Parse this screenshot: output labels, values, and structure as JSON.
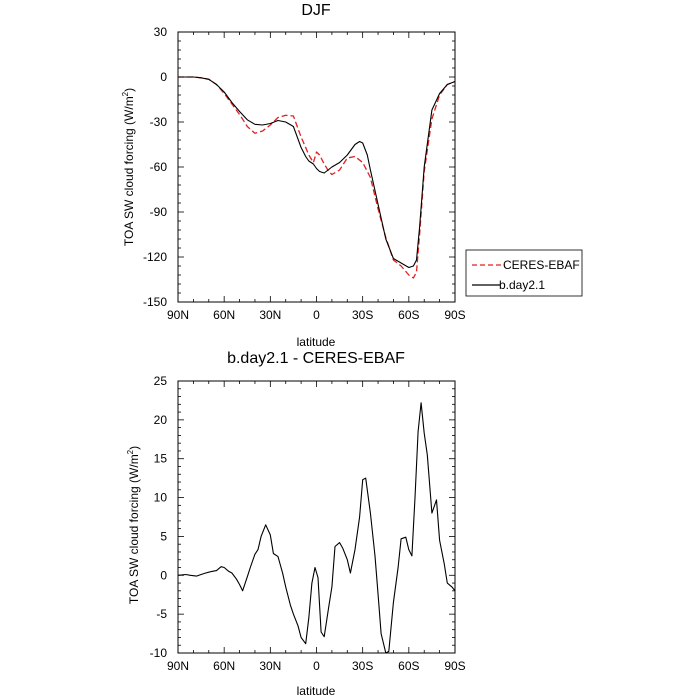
{
  "chart_data": [
    {
      "type": "line",
      "title": "DJF",
      "xlabel": "latitude",
      "ylabel": "TOA SW cloud forcing (W/m",
      "ylabel_sup": "2",
      "ylabel_close": ")",
      "xlim": [
        90,
        -90
      ],
      "ylim": [
        -150,
        30
      ],
      "x_ticks": [
        90,
        60,
        30,
        0,
        -30,
        -60,
        -90
      ],
      "x_tick_labels": [
        "90N",
        "60N",
        "30N",
        "0",
        "30S",
        "60S",
        "90S"
      ],
      "y_ticks": [
        30,
        0,
        -30,
        -60,
        -90,
        -120,
        -150
      ],
      "y_tick_labels": [
        "30",
        "0",
        "-30",
        "-60",
        "-90",
        "-120",
        "-150"
      ],
      "legend_position": "right",
      "series": [
        {
          "name": "CERES-EBAF",
          "color": "#e02020",
          "dash": "dashed",
          "x": [
            90,
            85,
            80,
            75,
            70,
            65,
            60,
            55,
            50,
            45,
            40,
            35,
            30,
            25,
            20,
            15,
            10,
            7,
            5,
            2,
            0,
            -2,
            -5,
            -8,
            -10,
            -15,
            -20,
            -25,
            -30,
            -35,
            -40,
            -45,
            -50,
            -55,
            -60,
            -63,
            -65,
            -67,
            -70,
            -75,
            -80,
            -85,
            -90
          ],
          "y": [
            0,
            0,
            0,
            -0.5,
            -1.5,
            -5,
            -11,
            -18,
            -25,
            -33,
            -37.5,
            -36,
            -32,
            -27,
            -25.5,
            -26,
            -40,
            -47,
            -52,
            -57,
            -50,
            -52,
            -58,
            -63,
            -65,
            -62,
            -54,
            -53,
            -57,
            -67,
            -88,
            -107,
            -122,
            -126,
            -132,
            -134,
            -130,
            -105,
            -63,
            -28,
            -12,
            -5,
            -3
          ]
        },
        {
          "name": "b.day2.1",
          "color": "#000000",
          "dash": "solid",
          "x": [
            90,
            85,
            80,
            75,
            70,
            65,
            60,
            55,
            50,
            45,
            40,
            35,
            30,
            25,
            20,
            15,
            10,
            7,
            5,
            2,
            0,
            -2,
            -5,
            -10,
            -15,
            -20,
            -25,
            -28,
            -30,
            -33,
            -35,
            -40,
            -45,
            -50,
            -55,
            -60,
            -63,
            -65,
            -67,
            -70,
            -75,
            -80,
            -85,
            -90
          ],
          "y": [
            0,
            0,
            0,
            -0.5,
            -1.5,
            -5,
            -10,
            -17,
            -23,
            -28.5,
            -31.5,
            -32,
            -31,
            -29,
            -30,
            -33,
            -47,
            -53,
            -56,
            -58,
            -61,
            -63,
            -64,
            -60,
            -57,
            -52,
            -45,
            -43,
            -44,
            -52,
            -62,
            -85,
            -108,
            -121,
            -124,
            -127,
            -126,
            -122,
            -100,
            -60,
            -22,
            -11,
            -5,
            -3
          ]
        }
      ]
    },
    {
      "type": "line",
      "title": "b.day2.1 - CERES-EBAF",
      "xlabel": "latitude",
      "ylabel": "TOA SW cloud forcing (W/m",
      "ylabel_sup": "2",
      "ylabel_close": ")",
      "xlim": [
        90,
        -90
      ],
      "ylim": [
        -10,
        25
      ],
      "x_ticks": [
        90,
        60,
        30,
        0,
        -30,
        -60,
        -90
      ],
      "x_tick_labels": [
        "90N",
        "60N",
        "30N",
        "0",
        "30S",
        "60S",
        "90S"
      ],
      "y_ticks": [
        25,
        20,
        15,
        10,
        5,
        0,
        -5,
        -10
      ],
      "y_tick_labels": [
        "25",
        "20",
        "15",
        "10",
        "5",
        "0",
        "-5",
        "-10"
      ],
      "series": [
        {
          "name": "",
          "color": "#000000",
          "dash": "solid",
          "x": [
            90,
            85,
            82,
            78,
            75,
            72,
            70,
            68,
            65,
            62,
            60,
            57,
            55,
            52,
            50,
            48,
            45,
            43,
            40,
            38,
            36,
            33,
            30,
            28,
            25,
            22,
            20,
            17,
            15,
            12,
            10,
            7,
            5,
            3,
            1,
            -1,
            -3,
            -5,
            -8,
            -10,
            -12,
            -15,
            -17,
            -20,
            -22,
            -25,
            -28,
            -30,
            -32,
            -35,
            -38,
            -40,
            -42,
            -45,
            -47,
            -50,
            -53,
            -55,
            -58,
            -60,
            -62,
            -64,
            -66,
            -68,
            -70,
            -72,
            -75,
            -78,
            -80,
            -83,
            -85,
            -88,
            -90
          ],
          "y": [
            0,
            0.1,
            0,
            -0.1,
            0.1,
            0.3,
            0.4,
            0.5,
            0.6,
            1.1,
            1.0,
            0.5,
            0.3,
            -0.5,
            -1.2,
            -2.0,
            -0.2,
            1.0,
            2.7,
            3.3,
            5.0,
            6.5,
            5.2,
            2.8,
            2.4,
            0.3,
            -1.5,
            -3.8,
            -5.0,
            -6.5,
            -8.0,
            -8.8,
            -5.5,
            -1.0,
            1.0,
            -0.3,
            -7.3,
            -7.9,
            -4.0,
            -1.5,
            3.7,
            4.2,
            3.5,
            2.0,
            0.3,
            3.3,
            7.5,
            12.3,
            12.5,
            8.0,
            2.5,
            -2.5,
            -7.5,
            -10.0,
            -9.8,
            -3.5,
            1.0,
            4.7,
            4.9,
            3.3,
            2.5,
            10.0,
            18.5,
            22.2,
            18.3,
            15.5,
            8.0,
            9.7,
            4.5,
            1.5,
            -1.0,
            -1.5,
            -2.0
          ]
        }
      ]
    }
  ]
}
